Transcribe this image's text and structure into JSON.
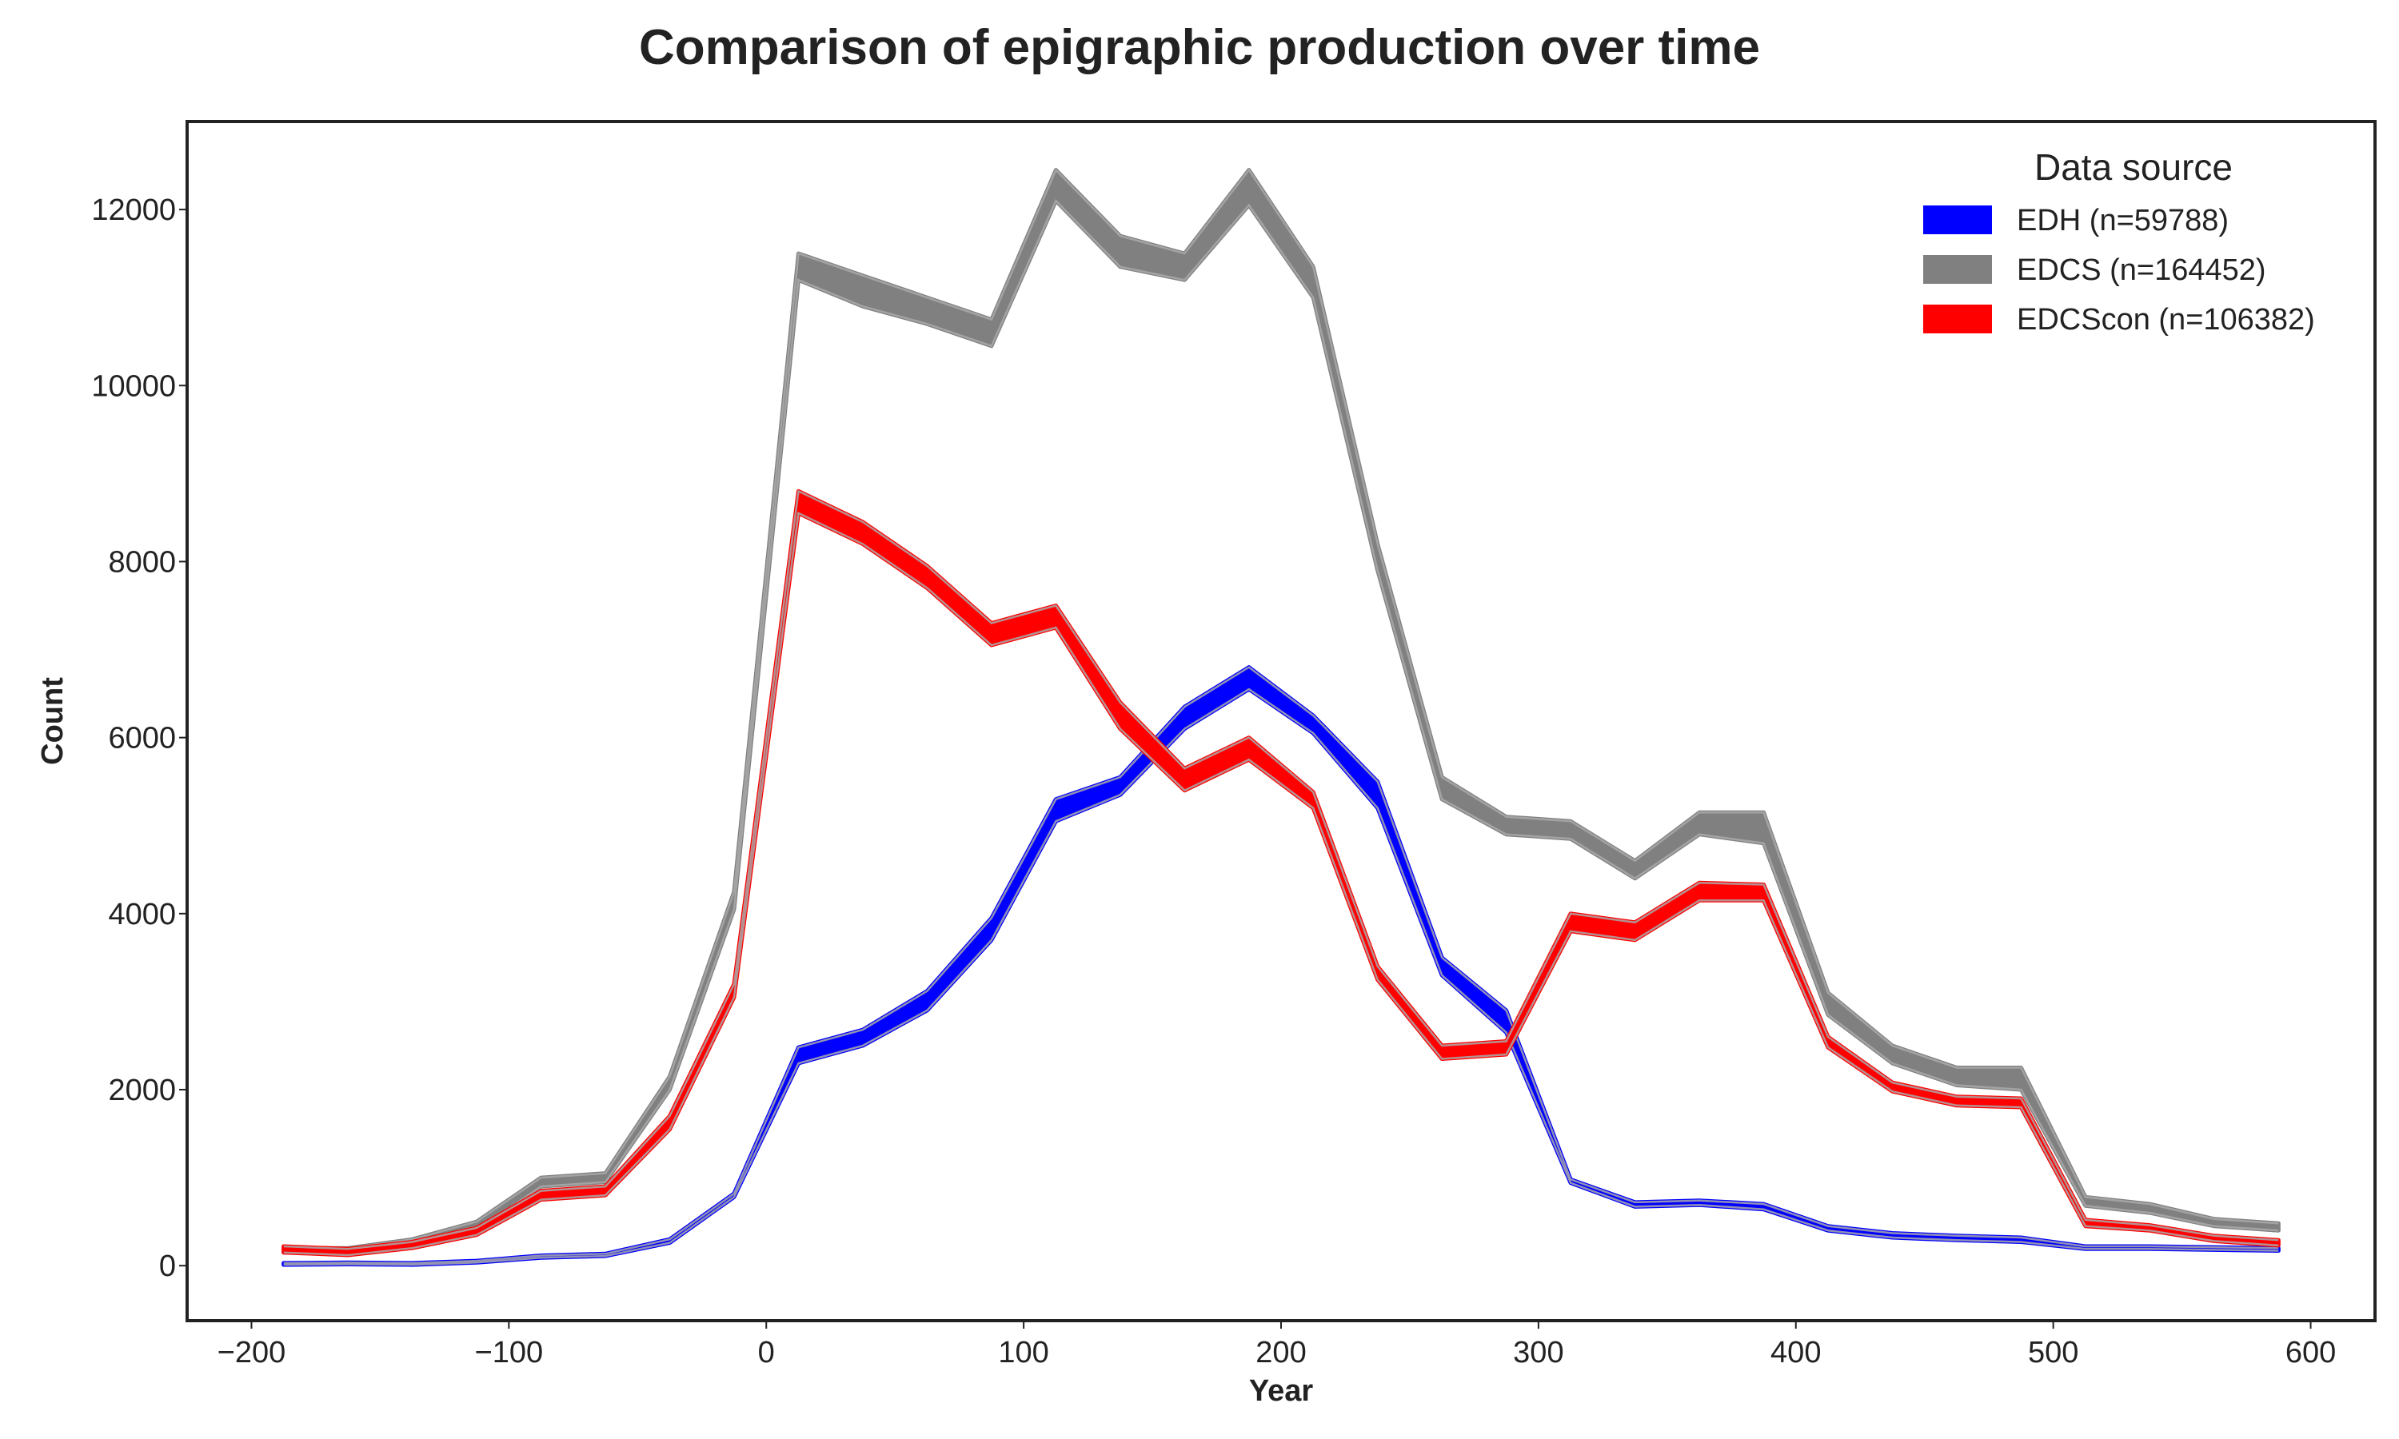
{
  "chart_data": {
    "type": "area",
    "title": "Comparison of epigraphic production over time",
    "xlabel": "Year",
    "ylabel": "Count",
    "xlim": [
      -225,
      625
    ],
    "ylim": [
      -625,
      13000
    ],
    "xticks": [
      -200,
      -100,
      0,
      100,
      200,
      300,
      400,
      500,
      600
    ],
    "xtick_labels": [
      "−200",
      "−100",
      "0",
      "100",
      "200",
      "300",
      "400",
      "500",
      "600"
    ],
    "yticks": [
      0,
      2000,
      4000,
      6000,
      8000,
      10000,
      12000
    ],
    "ytick_labels": [
      "0",
      "2000",
      "4000",
      "6000",
      "8000",
      "10000",
      "12000"
    ],
    "grid": false,
    "legend_title": "Data source",
    "legend_position": "top-right",
    "x": [
      -187.5,
      -162.5,
      -137.5,
      -112.5,
      -87.5,
      -62.5,
      -37.5,
      -12.5,
      12.5,
      37.5,
      62.5,
      87.5,
      112.5,
      137.5,
      162.5,
      187.5,
      212.5,
      237.5,
      262.5,
      287.5,
      312.5,
      337.5,
      362.5,
      387.5,
      412.5,
      437.5,
      462.5,
      487.5,
      512.5,
      537.5,
      562.5,
      587.5
    ],
    "series": [
      {
        "name": "EDH (n=59788)",
        "color": "#0000ff",
        "low": [
          10,
          15,
          10,
          35,
          90,
          110,
          260,
          780,
          2300,
          2500,
          2900,
          3700,
          5050,
          5350,
          6100,
          6550,
          6050,
          5200,
          3300,
          2650,
          940,
          670,
          690,
          640,
          400,
          320,
          290,
          270,
          190,
          190,
          180,
          170
        ],
        "high": [
          30,
          35,
          30,
          55,
          115,
          135,
          300,
          820,
          2480,
          2680,
          3120,
          3950,
          5300,
          5550,
          6350,
          6800,
          6250,
          5500,
          3500,
          2900,
          980,
          720,
          740,
          700,
          450,
          370,
          340,
          320,
          220,
          220,
          210,
          200
        ]
      },
      {
        "name": "EDCS (n=164452)",
        "color": "#808080",
        "low": [
          150,
          140,
          230,
          400,
          900,
          950,
          2000,
          4050,
          11200,
          10900,
          10700,
          10450,
          12100,
          11350,
          11200,
          12050,
          11000,
          7900,
          5300,
          4900,
          4850,
          4400,
          4900,
          4800,
          2850,
          2300,
          2050,
          2000,
          680,
          600,
          450,
          400
        ],
        "high": [
          200,
          200,
          300,
          500,
          1000,
          1050,
          2150,
          4250,
          11500,
          11250,
          11000,
          10750,
          12450,
          11700,
          11500,
          12450,
          11350,
          8200,
          5550,
          5100,
          5050,
          4600,
          5150,
          5150,
          3100,
          2500,
          2250,
          2250,
          780,
          700,
          530,
          480
        ]
      },
      {
        "name": "EDCScon (n=106382)",
        "color": "#ff0000",
        "low": [
          150,
          120,
          200,
          350,
          750,
          800,
          1550,
          3050,
          8550,
          8200,
          7700,
          7050,
          7250,
          6100,
          5400,
          5750,
          5200,
          3250,
          2350,
          2400,
          3800,
          3700,
          4150,
          4150,
          2480,
          1980,
          1820,
          1800,
          450,
          400,
          280,
          230
        ],
        "high": [
          220,
          190,
          270,
          430,
          850,
          900,
          1700,
          3200,
          8800,
          8450,
          7950,
          7300,
          7500,
          6400,
          5650,
          6000,
          5380,
          3400,
          2500,
          2550,
          4000,
          3900,
          4350,
          4330,
          2600,
          2080,
          1920,
          1900,
          520,
          460,
          340,
          290
        ]
      }
    ]
  }
}
